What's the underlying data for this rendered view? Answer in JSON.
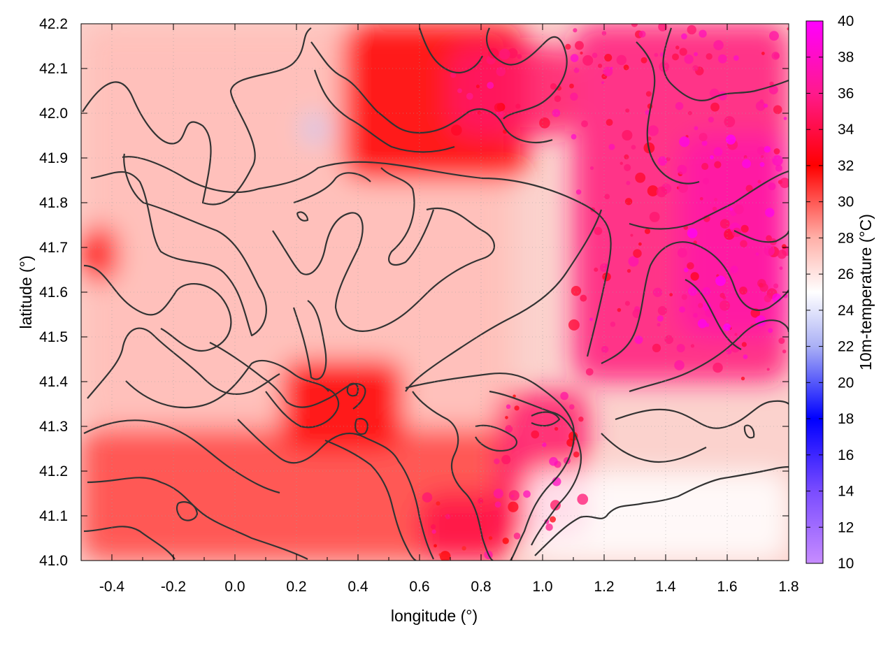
{
  "chart_data": {
    "type": "heatmap",
    "title": "",
    "xlabel": "longitude (°)",
    "ylabel": "latitude (°)",
    "colorbar_label": "10m-temperature (°C)",
    "xlim": [
      -0.5,
      1.8
    ],
    "ylim": [
      41.0,
      42.2
    ],
    "colorbar_range": [
      10,
      40
    ],
    "x_ticks": [
      "-0.4",
      "-0.2",
      "0.0",
      "0.2",
      "0.4",
      "0.6",
      "0.8",
      "1.0",
      "1.2",
      "1.4",
      "1.6",
      "1.8"
    ],
    "x_tick_values": [
      -0.4,
      -0.2,
      0.0,
      0.2,
      0.4,
      0.6,
      0.8,
      1.0,
      1.2,
      1.4,
      1.6,
      1.8
    ],
    "y_ticks": [
      "41.0",
      "41.1",
      "41.2",
      "41.3",
      "41.4",
      "41.5",
      "41.6",
      "41.7",
      "41.8",
      "41.9",
      "42.0",
      "42.1",
      "42.2"
    ],
    "y_tick_values": [
      41.0,
      41.1,
      41.2,
      41.3,
      41.4,
      41.5,
      41.6,
      41.7,
      41.8,
      41.9,
      42.0,
      42.1,
      42.2
    ],
    "colorbar_ticks": [
      "10",
      "12",
      "14",
      "16",
      "18",
      "20",
      "22",
      "24",
      "26",
      "28",
      "30",
      "32",
      "34",
      "36",
      "38",
      "40"
    ],
    "colorbar_tick_values": [
      10,
      12,
      14,
      16,
      18,
      20,
      22,
      24,
      26,
      28,
      30,
      32,
      34,
      36,
      38,
      40
    ],
    "colormap": [
      {
        "value": 10,
        "color": "#c78cff"
      },
      {
        "value": 14,
        "color": "#7a4cff"
      },
      {
        "value": 18,
        "color": "#0000ff"
      },
      {
        "value": 22,
        "color": "#aab0f5"
      },
      {
        "value": 25,
        "color": "#ffffff"
      },
      {
        "value": 28,
        "color": "#ffb0a8"
      },
      {
        "value": 32,
        "color": "#ff0000"
      },
      {
        "value": 36,
        "color": "#ff1a8c"
      },
      {
        "value": 40,
        "color": "#ff00ff"
      }
    ],
    "grid": true,
    "contours": "terrain elevation contours overlay (dark gray)",
    "field_regions": [
      {
        "lon": [
          -0.5,
          0.9
        ],
        "lat": [
          41.3,
          42.2
        ],
        "temp": 27.5
      },
      {
        "lon": [
          0.35,
          0.95
        ],
        "lat": [
          41.85,
          42.2
        ],
        "temp": 32
      },
      {
        "lon": [
          0.7,
          1.1
        ],
        "lat": [
          41.95,
          42.15
        ],
        "temp": 35
      },
      {
        "lon": [
          1.1,
          1.8
        ],
        "lat": [
          41.4,
          42.2
        ],
        "temp": 35.5
      },
      {
        "lon": [
          1.45,
          1.8
        ],
        "lat": [
          41.5,
          41.95
        ],
        "temp": 37
      },
      {
        "lon": [
          -0.5,
          0.9
        ],
        "lat": [
          41.0,
          41.3
        ],
        "temp": 30.5
      },
      {
        "lon": [
          0.15,
          0.55
        ],
        "lat": [
          41.25,
          41.45
        ],
        "temp": 32
      },
      {
        "lon": [
          0.85,
          1.15
        ],
        "lat": [
          41.05,
          41.38
        ],
        "temp": 35
      },
      {
        "lon": [
          0.6,
          0.9
        ],
        "lat": [
          41.0,
          41.15
        ],
        "temp": 34
      },
      {
        "lon": [
          0.95,
          1.8
        ],
        "lat": [
          41.0,
          41.2
        ],
        "temp": 25
      },
      {
        "lon": [
          0.22,
          0.3
        ],
        "lat": [
          41.93,
          42.0
        ],
        "temp": 23
      },
      {
        "lon": [
          -0.5,
          -0.38
        ],
        "lat": [
          41.62,
          41.75
        ],
        "temp": 32
      }
    ]
  }
}
